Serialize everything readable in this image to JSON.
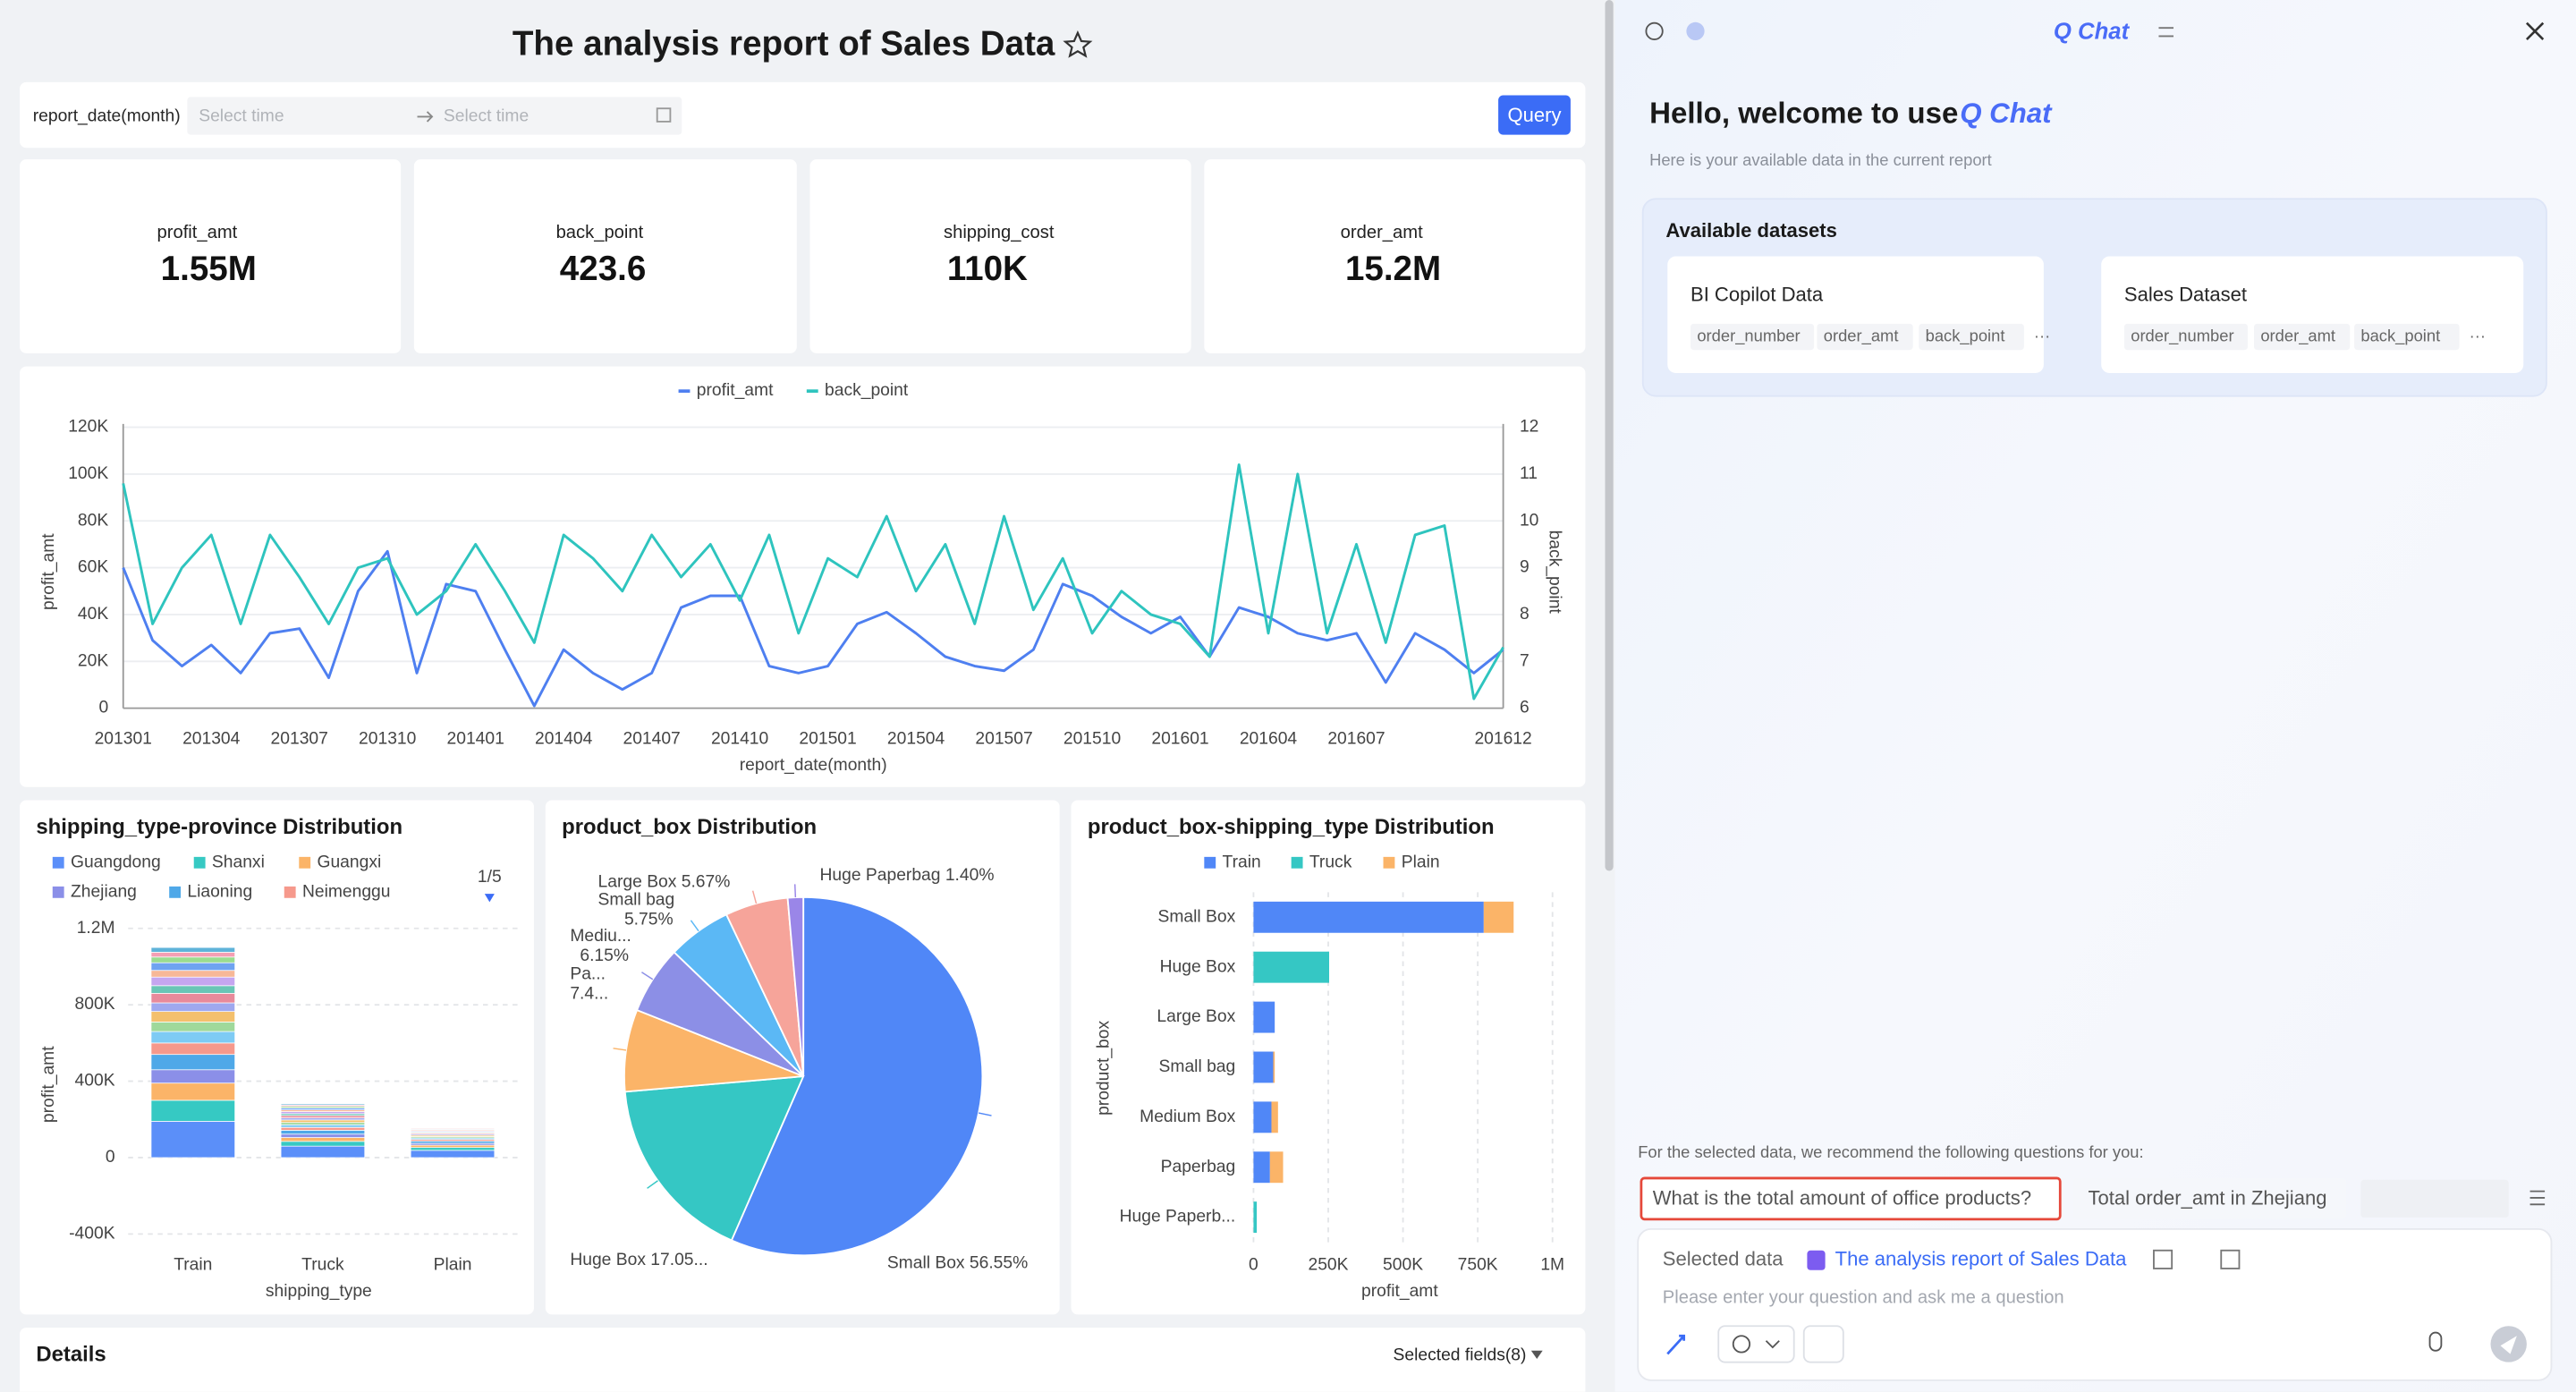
{
  "header": {
    "title": "The analysis report of Sales Data"
  },
  "filter": {
    "label": "report_date(month)",
    "start_placeholder": "Select time",
    "end_placeholder": "Select time",
    "button": "Query"
  },
  "kpis": [
    {
      "label": "profit_amt",
      "value": "1.55M"
    },
    {
      "label": "back_point",
      "value": "423.6"
    },
    {
      "label": "shipping_cost",
      "value": "110K"
    },
    {
      "label": "order_amt",
      "value": "15.2M"
    }
  ],
  "chart_data": [
    {
      "type": "line",
      "x_label": "report_date(month)",
      "y_label": "profit_amt",
      "y2_label": "back_point",
      "legend": "top",
      "categories": [
        "201301",
        null,
        null,
        "201304",
        null,
        null,
        "201307",
        null,
        null,
        "201310",
        null,
        null,
        "201401",
        null,
        null,
        "201404",
        null,
        null,
        "201407",
        null,
        null,
        "201410",
        null,
        null,
        "201501",
        null,
        null,
        "201504",
        null,
        null,
        "201507",
        null,
        null,
        "201510",
        null,
        null,
        "201601",
        null,
        null,
        "201604",
        null,
        null,
        "201607",
        null,
        null,
        null,
        null,
        "201612"
      ],
      "series": [
        {
          "name": "profit_amt",
          "color": "#4e7ff0",
          "values": [
            60000,
            29000,
            18000,
            27000,
            15000,
            32000,
            34000,
            13000,
            50000,
            67000,
            15000,
            53000,
            50000,
            25000,
            1000,
            25000,
            15000,
            8000,
            15000,
            43000,
            48000,
            48000,
            18000,
            15000,
            18000,
            36000,
            41000,
            32000,
            22000,
            18000,
            16000,
            25000,
            53000,
            48000,
            39000,
            32000,
            39000,
            22000,
            43000,
            39000,
            32000,
            29000,
            32000,
            11000,
            32000,
            25000,
            15000,
            25000
          ]
        },
        {
          "name": "back_point",
          "color": "#2ec4be",
          "axis": "y2",
          "values": [
            10.8,
            7.8,
            9.0,
            9.7,
            7.8,
            9.7,
            8.8,
            7.8,
            9.0,
            9.2,
            8.0,
            8.5,
            9.5,
            8.5,
            7.4,
            9.7,
            9.2,
            8.5,
            9.7,
            8.8,
            9.5,
            8.3,
            9.7,
            7.6,
            9.2,
            8.8,
            10.1,
            8.5,
            9.5,
            7.8,
            10.1,
            8.1,
            9.2,
            7.6,
            8.5,
            8.0,
            7.8,
            7.1,
            11.2,
            7.6,
            11.0,
            7.6,
            9.5,
            7.4,
            9.7,
            9.9,
            6.2,
            7.3
          ]
        }
      ],
      "ylim": [
        0,
        120000
      ],
      "yticks": [
        0,
        {
          "value": 20000,
          "label": "20K"
        },
        {
          "value": 40000,
          "label": "40K"
        },
        {
          "value": 60000,
          "label": "60K"
        },
        {
          "value": 80000,
          "label": "80K"
        },
        {
          "value": 100000,
          "label": "100K"
        },
        {
          "value": 120000,
          "label": "120K"
        }
      ],
      "y2lim": [
        6,
        12
      ],
      "y2ticks": [
        6,
        7,
        8,
        9,
        10,
        11,
        12
      ],
      "grid": true
    },
    {
      "type": "stacked_bar",
      "title": "shipping_type-province Distribution",
      "x_label": "shipping_type",
      "y_label": "profit_amt",
      "legend_page": "1/5",
      "categories": [
        "Train",
        "Truck",
        "Plain"
      ],
      "series": [
        {
          "name": "Guangdong",
          "color": "#5b8ff9",
          "values": [
            190000,
            60000,
            38000
          ]
        },
        {
          "name": "Shanxi",
          "color": "#36c9c3",
          "values": [
            110000,
            25000,
            15000
          ]
        },
        {
          "name": "Guangxi",
          "color": "#fbb468",
          "values": [
            90000,
            20000,
            12000
          ]
        },
        {
          "name": "Zhejiang",
          "color": "#8b8fe8",
          "values": [
            70000,
            18000,
            10000
          ]
        },
        {
          "name": "Liaoning",
          "color": "#4fa8e8",
          "values": [
            80000,
            20000,
            11000
          ]
        },
        {
          "name": "Neimenggu",
          "color": "#f6998c",
          "values": [
            60000,
            15000,
            9000
          ]
        },
        {
          "color": "#7ecbf4",
          "values": [
            60000,
            14000,
            8000
          ]
        },
        {
          "color": "#9fd99b",
          "values": [
            50000,
            12000,
            7000
          ]
        },
        {
          "color": "#f4c06d",
          "values": [
            55000,
            13000,
            7000
          ]
        },
        {
          "color": "#9fa8ef",
          "values": [
            45000,
            11000,
            6000
          ]
        },
        {
          "color": "#e88a9b",
          "values": [
            50000,
            12000,
            6000
          ]
        },
        {
          "color": "#69c6b6",
          "values": [
            40000,
            10000,
            5000
          ]
        },
        {
          "color": "#c5a6f0",
          "values": [
            45000,
            11000,
            5000
          ]
        },
        {
          "color": "#f7b897",
          "values": [
            35000,
            9000,
            5000
          ]
        },
        {
          "color": "#6fa3f0",
          "values": [
            40000,
            10000,
            4000
          ]
        },
        {
          "color": "#9bdc8f",
          "values": [
            30000,
            8000,
            4000
          ]
        },
        {
          "color": "#f59fb4",
          "values": [
            25000,
            7000,
            4000
          ]
        },
        {
          "color": "#5fb3d9",
          "values": [
            25000,
            6000,
            3000
          ]
        }
      ],
      "ylim": [
        -400000,
        1200000
      ],
      "yticks": [
        {
          "value": -400000,
          "label": "-400K"
        },
        0,
        {
          "value": 400000,
          "label": "400K"
        },
        {
          "value": 800000,
          "label": "800K"
        },
        {
          "value": 1200000,
          "label": "1.2M"
        }
      ],
      "grid": true
    },
    {
      "type": "pie",
      "title": "product_box Distribution",
      "values": [
        56.55,
        17.05,
        7.4,
        6.15,
        5.75,
        5.67,
        1.4
      ],
      "labels": [
        [
          "Small Box 56.55%"
        ],
        [
          "Huge Box 17.05..."
        ],
        [
          "Pa...",
          "7.4..."
        ],
        [
          "Mediu...",
          "6.15%"
        ],
        [
          "Small bag",
          "5.75%"
        ],
        [
          "Large Box 5.67%"
        ],
        [
          "Huge Paperbag 1.40%"
        ]
      ],
      "colors": [
        "#5087f7",
        "#35c7c4",
        "#fbb468",
        "#8c8fe6",
        "#5bb8f5",
        "#f6a49a",
        "#9a86e8"
      ]
    },
    {
      "type": "hbar",
      "title": "product_box-shipping_type Distribution",
      "x_label": "profit_amt",
      "y_label": "product_box",
      "categories": [
        "Small Box",
        "Huge Box",
        "Large Box",
        "Small bag",
        "Medium Box",
        "Paperbag",
        "Huge Paperb..."
      ],
      "series": [
        {
          "name": "Train",
          "color": "#5087f7",
          "values": [
            770000,
            0,
            71000,
            66000,
            60000,
            55000,
            0
          ]
        },
        {
          "name": "Truck",
          "color": "#35c7c4",
          "values": [
            0,
            253000,
            0,
            0,
            0,
            0,
            11000
          ]
        },
        {
          "name": "Plain",
          "color": "#fbb468",
          "values": [
            100000,
            0,
            0,
            5000,
            22000,
            44000,
            0
          ]
        }
      ],
      "xlim": [
        0,
        1000000
      ],
      "xticks": [
        0,
        {
          "value": 250000,
          "label": "250K"
        },
        {
          "value": 500000,
          "label": "500K"
        },
        {
          "value": 750000,
          "label": "750K"
        },
        {
          "value": 1000000,
          "label": "1M"
        }
      ],
      "grid": true
    }
  ],
  "details": {
    "title": "Details",
    "fields": "Selected fields(8)"
  },
  "chat": {
    "title": "Q Chat",
    "greeting": "Hello, welcome to use",
    "brand": "Q Chat",
    "subtitle": "Here is your available data in the current report",
    "datasets_title": "Available datasets",
    "datasets": [
      {
        "name": "BI Copilot Data",
        "fields": [
          "order_number",
          "order_amt",
          "back_point",
          "···"
        ]
      },
      {
        "name": "Sales Dataset",
        "fields": [
          "order_number",
          "order_amt",
          "back_point",
          "···"
        ]
      }
    ],
    "recommend": "For the selected data, we recommend the following questions for you:",
    "questions": [
      "What is the total amount of office products?",
      "Total order_amt in Zhejiang"
    ],
    "selected_label": "Selected data",
    "selected_value": "The analysis report of Sales Data",
    "placeholder": "Please enter your question and ask me a question"
  }
}
